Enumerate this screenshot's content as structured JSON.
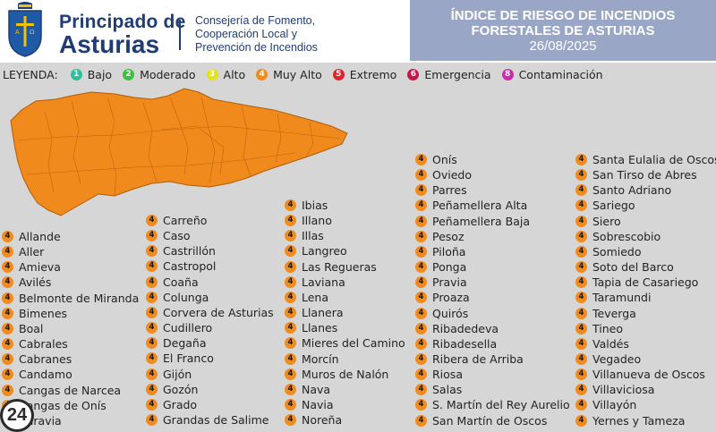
{
  "header": {
    "brand_line1": "Principado de",
    "brand_line2": "Asturias",
    "dept_line1": "Consejería de Fomento,",
    "dept_line2": "Cooperación Local y",
    "dept_line3": "Prevención de Incendios",
    "title_line1": "ÍNDICE DE RIESGO DE INCENDIOS",
    "title_line2": "FORESTALES DE ASTURIAS",
    "date": "26/08/2025"
  },
  "legend": {
    "label": "LEYENDA:",
    "items": [
      {
        "num": "1",
        "label": "Bajo",
        "color": "#2fbf9b"
      },
      {
        "num": "2",
        "label": "Moderado",
        "color": "#3fbf3f"
      },
      {
        "num": "3",
        "label": "Alto",
        "color": "#e3e31c"
      },
      {
        "num": "4",
        "label": "Muy Alto",
        "color": "#ef8b1f"
      },
      {
        "num": "5",
        "label": "Extremo",
        "color": "#e0232b"
      },
      {
        "num": "6",
        "label": "Emergencia",
        "color": "#c3174a"
      },
      {
        "num": "8",
        "label": "Contaminación",
        "color": "#cc2bb0"
      }
    ]
  },
  "risk_level": "4",
  "map_color": "#f08a1d",
  "columns": [
    [
      "Allande",
      "Aller",
      "Amieva",
      "Avilés",
      "Belmonte de Miranda",
      "Bimenes",
      "Boal",
      "Cabrales",
      "Cabranes",
      "Candamo",
      "Cangas de Narcea",
      "Cangas de Onís",
      "Caravia"
    ],
    [
      "Carreño",
      "Caso",
      "Castrillón",
      "Castropol",
      "Coaña",
      "Colunga",
      "Corvera de Asturias",
      "Cudillero",
      "Degaña",
      "El Franco",
      "Gijón",
      "Gozón",
      "Grado",
      "Grandas de Salime"
    ],
    [
      "Ibias",
      "Illano",
      "Illas",
      "Langreo",
      "Las Regueras",
      "Laviana",
      "Lena",
      "Llanera",
      "Llanes",
      "Mieres del Camino",
      "Morcín",
      "Muros de Nalón",
      "Nava",
      "Navia",
      "Noreña"
    ],
    [
      "Onís",
      "Oviedo",
      "Parres",
      "Peñamellera Alta",
      "Peñamellera Baja",
      "Pesoz",
      "Piloña",
      "Ponga",
      "Pravia",
      "Proaza",
      "Quirós",
      "Ribadedeva",
      "Ribadesella",
      "Ribera de Arriba",
      "Riosa",
      "Salas",
      "S. Martín del Rey Aurelio",
      "San Martín de Oscos"
    ],
    [
      "Santa Eulalia de Oscos",
      "San Tirso de Abres",
      "Santo Adriano",
      "Sariego",
      "Siero",
      "Sobrescobio",
      "Somiedo",
      "Soto del Barco",
      "Tapia de Casariego",
      "Taramundi",
      "Teverga",
      "Tineo",
      "Valdés",
      "Vegadeo",
      "Villanueva de Oscos",
      "Villaviciosa",
      "Villayón",
      "Yernes y Tameza"
    ]
  ],
  "badge_text": "24"
}
